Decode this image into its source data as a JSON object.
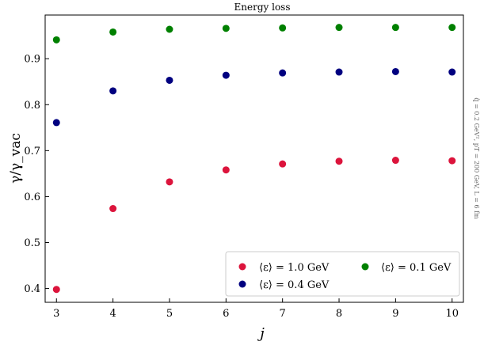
{
  "chart_data": {
    "type": "scatter",
    "title": "Energy loss",
    "xlabel": "j",
    "ylabel": "γ/γ_vac",
    "side_note": "q̂ = 0.2 GeV², pT = 200 GeV, L = 6 fm",
    "xlim": [
      2.8,
      10.2
    ],
    "ylim": [
      0.37,
      0.995
    ],
    "x_ticks": [
      3,
      4,
      5,
      6,
      7,
      8,
      9,
      10
    ],
    "y_ticks": [
      0.4,
      0.5,
      0.6,
      0.7,
      0.8,
      0.9
    ],
    "grid": false,
    "legend_position": "bottom-right",
    "series": [
      {
        "name": "⟨ε⟩ = 1.0 GeV",
        "color": "#dc143c",
        "x": [
          3,
          4,
          5,
          6,
          7,
          8,
          9,
          10
        ],
        "y": [
          0.398,
          0.574,
          0.632,
          0.658,
          0.671,
          0.677,
          0.679,
          0.678
        ]
      },
      {
        "name": "⟨ε⟩ = 0.4 GeV",
        "color": "#000080",
        "x": [
          3,
          4,
          5,
          6,
          7,
          8,
          9,
          10
        ],
        "y": [
          0.761,
          0.83,
          0.853,
          0.864,
          0.869,
          0.871,
          0.872,
          0.871
        ]
      },
      {
        "name": "⟨ε⟩ = 0.1 GeV",
        "color": "#008000",
        "x": [
          3,
          4,
          5,
          6,
          7,
          8,
          9,
          10
        ],
        "y": [
          0.941,
          0.958,
          0.964,
          0.966,
          0.967,
          0.968,
          0.968,
          0.968
        ]
      }
    ]
  }
}
